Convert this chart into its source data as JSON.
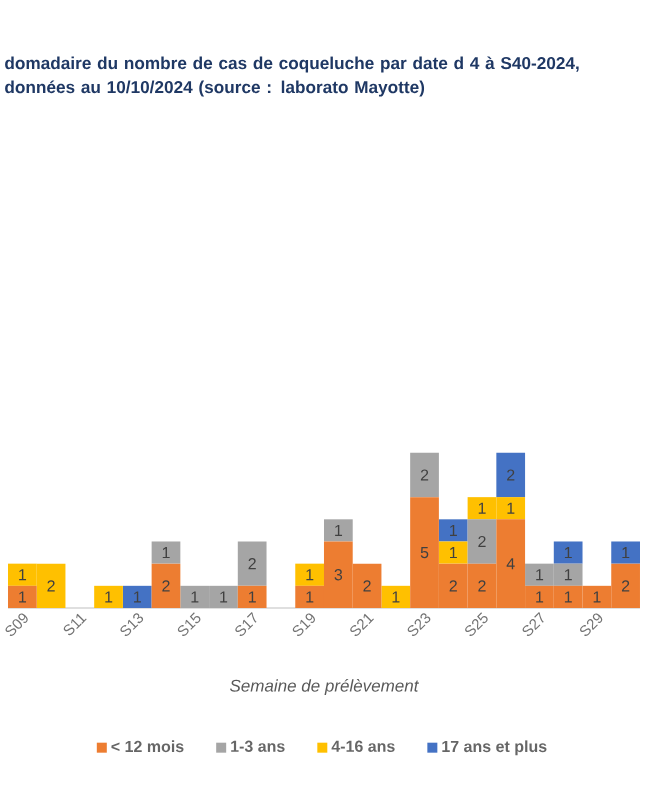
{
  "chart_data": {
    "type": "bar",
    "stacked": true,
    "title": "domadaire du nombre de cas de coqueluche par date d 4 à S40-2024, données au 10/10/2024 (source : laborato Mayotte)",
    "xlabel": "Semaine de prélèvement",
    "categories": [
      "S09",
      null,
      "S11",
      null,
      "S13",
      null,
      "S15",
      null,
      "S17",
      null,
      "S19",
      null,
      "S21",
      null,
      "S23",
      null,
      "S25",
      null,
      "S27",
      null,
      "S29",
      null
    ],
    "series": [
      {
        "name": "< 12 mois",
        "color": "#ed7d31",
        "values": [
          1,
          null,
          null,
          null,
          null,
          2,
          null,
          null,
          1,
          null,
          1,
          3,
          2,
          null,
          5,
          2,
          2,
          4,
          1,
          1,
          1,
          2
        ]
      },
      {
        "name": "1-3 ans",
        "color": "#a5a5a5",
        "values": [
          null,
          null,
          null,
          null,
          null,
          1,
          1,
          1,
          2,
          null,
          null,
          1,
          null,
          null,
          2,
          null,
          2,
          null,
          1,
          1,
          null,
          null
        ]
      },
      {
        "name": "4-16 ans",
        "color": "#ffc000",
        "values": [
          1,
          2,
          null,
          1,
          null,
          null,
          null,
          null,
          null,
          null,
          1,
          null,
          null,
          1,
          null,
          1,
          1,
          1,
          null,
          null,
          null,
          null
        ]
      },
      {
        "name": "17 ans et plus",
        "color": "#4472c4",
        "values": [
          null,
          null,
          null,
          null,
          1,
          null,
          null,
          null,
          null,
          null,
          null,
          null,
          null,
          null,
          null,
          1,
          null,
          2,
          null,
          1,
          null,
          1
        ]
      }
    ],
    "data_labels": true,
    "tick_labels": "x",
    "legend": "bottom"
  }
}
